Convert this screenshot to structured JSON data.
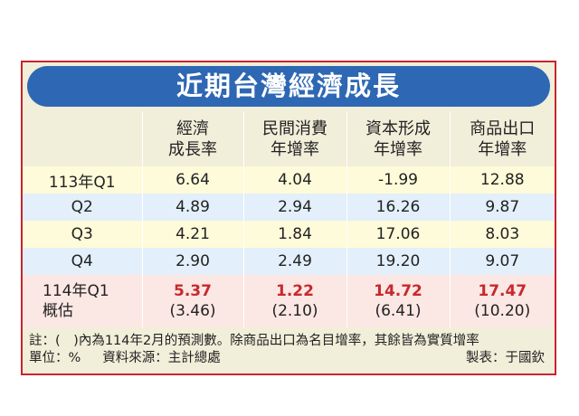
{
  "title": "近期台灣經濟成長",
  "table": {
    "headers": [
      {
        "line1": "",
        "line2": ""
      },
      {
        "line1": "經濟",
        "line2": "成長率"
      },
      {
        "line1": "民間消費",
        "line2": "年增率"
      },
      {
        "line1": "資本形成",
        "line2": "年增率"
      },
      {
        "line1": "商品出口",
        "line2": "年增率"
      }
    ],
    "rows": [
      {
        "label": "113年Q1",
        "values": [
          "6.64",
          "4.04",
          "-1.99",
          "12.88"
        ]
      },
      {
        "label": "Q2",
        "values": [
          "4.89",
          "2.94",
          "16.26",
          "9.87"
        ]
      },
      {
        "label": "Q3",
        "values": [
          "4.21",
          "1.84",
          "17.06",
          "8.03"
        ]
      },
      {
        "label": "Q4",
        "values": [
          "2.90",
          "2.49",
          "19.20",
          "9.07"
        ]
      }
    ],
    "estimate_row": {
      "label1": "114年Q1",
      "label2": "概估",
      "values": [
        "5.37",
        "1.22",
        "14.72",
        "17.47"
      ],
      "prior": [
        "(3.46)",
        "(2.10)",
        "(6.41)",
        "(10.20)"
      ]
    }
  },
  "notes": {
    "note": "註：(　)內為114年2月的預測數。除商品出口為名目增率，其餘皆為實質增率",
    "unit": "單位：%",
    "source": "資料來源：主計總處",
    "credit": "製表：于國欽"
  },
  "colors": {
    "border": "#c9242d",
    "banner": "#2e67b3",
    "highlight": "#c8282e",
    "row_yellow": "#fdfbd9",
    "row_blue": "#e3effa",
    "row_pink": "#fbe7e3"
  }
}
